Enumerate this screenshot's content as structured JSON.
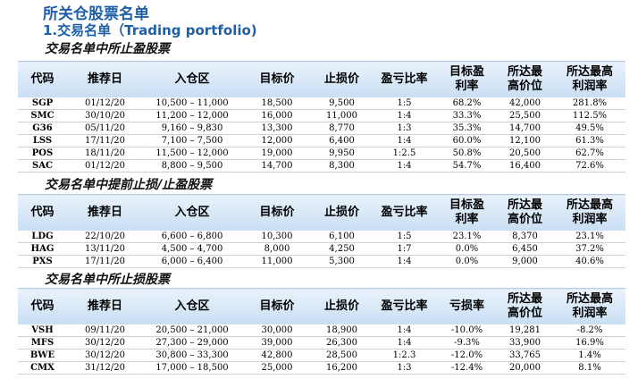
{
  "header": {
    "title": "所关仓股票名单",
    "subtitle": "1.交易名单（Trading portfolio)"
  },
  "sections": [
    {
      "heading": "交易名单中所止盈股票",
      "columns": [
        "代码",
        "推荐日",
        "入仓区",
        "目标价",
        "止损价",
        "盈亏比率",
        "目标盈利率",
        "所达最高价位",
        "所达最高利润率"
      ],
      "rows": [
        [
          "SGP",
          "01/12/20",
          "10,500 – 11,000",
          "18,500",
          "9,500",
          "1:5",
          "68.2%",
          "42,000",
          "281.8%"
        ],
        [
          "SMC",
          "30/10/20",
          "11,200 – 12,000",
          "16,000",
          "11,000",
          "1:4",
          "33.3%",
          "25,500",
          "112.5%"
        ],
        [
          "G36",
          "05/11/20",
          "9,160 – 9,830",
          "13,300",
          "8,770",
          "1:3",
          "35.3%",
          "14,700",
          "49.5%"
        ],
        [
          "LSS",
          "17/11/20",
          "7,100 – 7,500",
          "12,000",
          "6,400",
          "1:4",
          "60.0%",
          "12,100",
          "61.3%"
        ],
        [
          "POS",
          "18/11/20",
          "11,500 – 12,000",
          "19,000",
          "9,950",
          "1:2.5",
          "50.8%",
          "20,500",
          "62.7%"
        ],
        [
          "SAC",
          "01/12/20",
          "8,800 – 9,500",
          "14,700",
          "8,300",
          "1:4",
          "54.7%",
          "16,400",
          "72.6%"
        ]
      ]
    },
    {
      "heading": "交易名单中提前止损/止盈股票",
      "columns": [
        "代码",
        "推荐日",
        "入仓区",
        "目标价",
        "止损价",
        "盈亏比率",
        "目标盈利率",
        "所达最高价位",
        "所达最高利润率"
      ],
      "rows": [
        [
          "LDG",
          "22/10/20",
          "6,600 – 6,800",
          "10,300",
          "6,100",
          "1:5",
          "23.1%",
          "8,370",
          "23.1%"
        ],
        [
          "HAG",
          "13/11/20",
          "4,500 – 4,700",
          "8,000",
          "4,250",
          "1:7",
          "0.0%",
          "6,450",
          "37.2%"
        ],
        [
          "PXS",
          "17/11/20",
          "6,000 – 6,400",
          "11,000",
          "5,300",
          "1:4",
          "0.0%",
          "9,000",
          "40.6%"
        ]
      ]
    },
    {
      "heading": "交易名单中所止损股票",
      "columns": [
        "代码",
        "推荐日",
        "入仓区",
        "目标价",
        "止损价",
        "盈亏比率",
        "亏损率",
        "所达最高价位",
        "所达最高利润率"
      ],
      "rows": [
        [
          "VSH",
          "09/11/20",
          "20,500 – 21,000",
          "30,000",
          "18,900",
          "1:4",
          "-10.0%",
          "19,281",
          "-8.2%"
        ],
        [
          "MFS",
          "30/12/20",
          "27,300 – 29,000",
          "39,000",
          "26,300",
          "1:4",
          "-9.3%",
          "33,900",
          "16.9%"
        ],
        [
          "BWE",
          "30/12/20",
          "30,800 – 33,300",
          "42,800",
          "28,500",
          "1:2.3",
          "-12.0%",
          "33,765",
          "1.4%"
        ],
        [
          "CMX",
          "31/12/20",
          "17,000 – 18,500",
          "25,000",
          "16,200",
          "1:3",
          "-12.4%",
          "20,000",
          "8.1%"
        ]
      ]
    }
  ]
}
